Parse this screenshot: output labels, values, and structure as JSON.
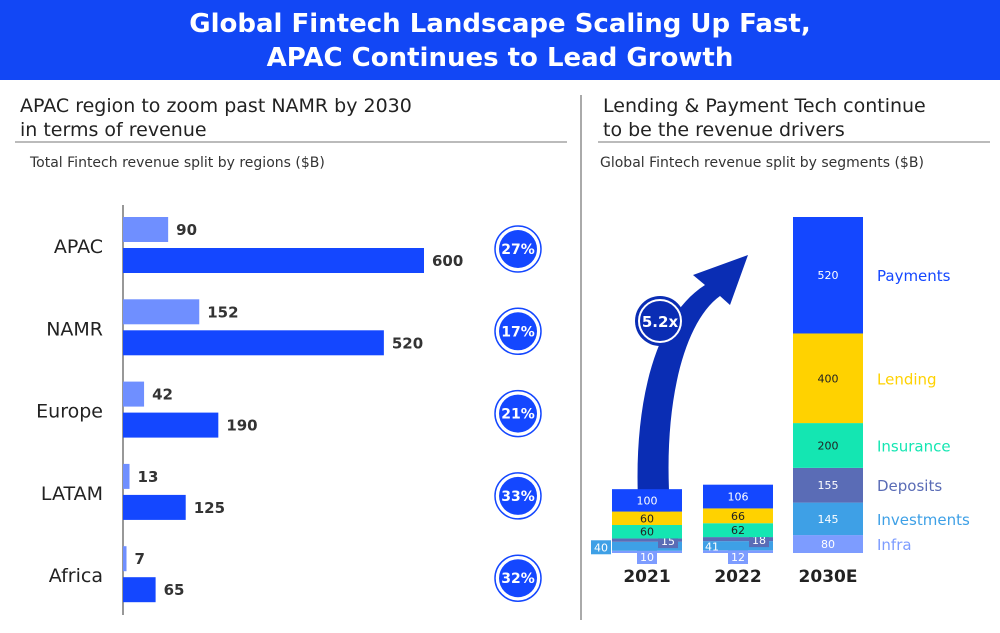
{
  "header": {
    "title_line1": "Global Fintech Landscape Scaling Up Fast,",
    "title_line2": "APAC Continues to Lead Growth"
  },
  "left": {
    "title_line1": "APAC region to zoom past NAMR by 2030",
    "title_line2": "in terms of revenue",
    "subtitle": "Total Fintech revenue split by regions ($B)"
  },
  "right": {
    "title_line1": "Lending & Payment Tech continue",
    "title_line2": "to be the revenue drivers",
    "subtitle": "Global Fintech revenue split by segments ($B)",
    "growth_label": "5.2x"
  },
  "colors": {
    "header": "#1247f5",
    "bar_light": "#6f8fff",
    "bar_dark": "#1447ff",
    "arrow": "#0a2db4",
    "Payments": "#1447ff",
    "Lending": "#ffd200",
    "Insurance": "#14e6b2",
    "Deposits": "#5a6cb6",
    "Investments": "#3ea0e6",
    "Infra": "#7d9cff"
  },
  "chart_data": [
    {
      "type": "bar",
      "orientation": "horizontal",
      "categories": [
        "APAC",
        "NAMR",
        "Europe",
        "LATAM",
        "Africa"
      ],
      "series": [
        {
          "values": [
            90,
            152,
            42,
            13,
            7
          ]
        },
        {
          "values": [
            600,
            520,
            190,
            125,
            65
          ]
        }
      ],
      "growth_rates": [
        "27%",
        "17%",
        "21%",
        "33%",
        "32%"
      ],
      "xlim": [
        0,
        600
      ]
    },
    {
      "type": "bar",
      "stacked": true,
      "categories": [
        "2021",
        "2022",
        "2030E"
      ],
      "series": [
        {
          "name": "Infra",
          "values": [
            10,
            12,
            80
          ]
        },
        {
          "name": "Investments",
          "values": [
            40,
            41,
            145
          ]
        },
        {
          "name": "Deposits",
          "values": [
            15,
            18,
            155
          ]
        },
        {
          "name": "Insurance",
          "values": [
            60,
            62,
            200
          ]
        },
        {
          "name": "Lending",
          "values": [
            60,
            66,
            400
          ]
        },
        {
          "name": "Payments",
          "values": [
            100,
            106,
            520
          ]
        }
      ]
    }
  ]
}
